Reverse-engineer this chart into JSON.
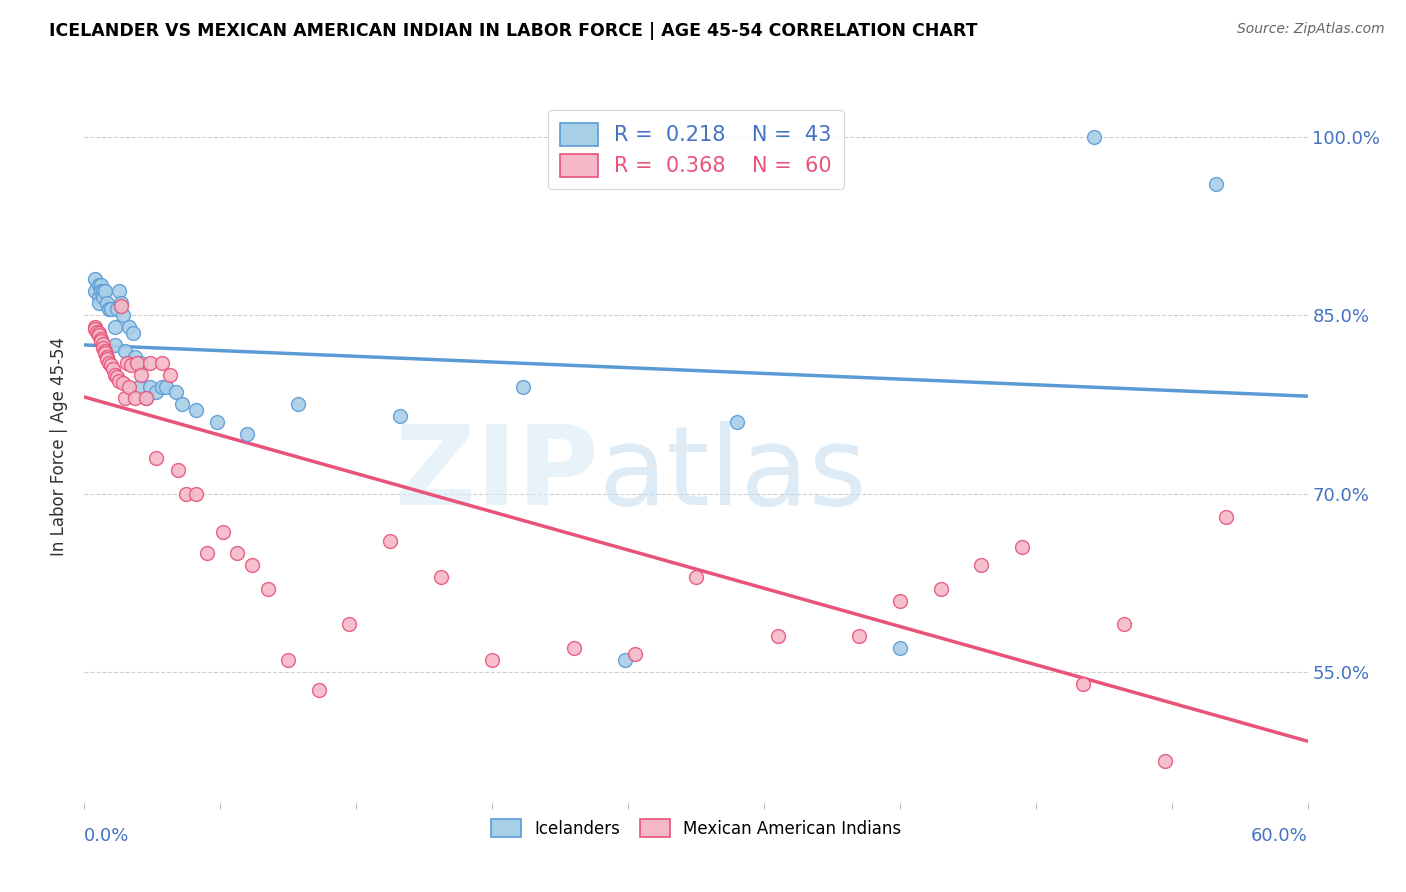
{
  "title": "ICELANDER VS MEXICAN AMERICAN INDIAN IN LABOR FORCE | AGE 45-54 CORRELATION CHART",
  "source": "Source: ZipAtlas.com",
  "ylabel": "In Labor Force | Age 45-54",
  "ylabel_right_ticks": [
    "55.0%",
    "70.0%",
    "85.0%",
    "100.0%"
  ],
  "ylabel_right_values": [
    0.55,
    0.7,
    0.85,
    1.0
  ],
  "xlim": [
    0.0,
    0.6
  ],
  "ylim": [
    0.44,
    1.04
  ],
  "color_blue": "#a8cfe8",
  "color_pink": "#f4b8c8",
  "color_blue_line": "#5b9bd5",
  "color_pink_line": "#e8537a",
  "icelanders_x": [
    0.005,
    0.005,
    0.007,
    0.007,
    0.007,
    0.008,
    0.008,
    0.009,
    0.009,
    0.01,
    0.011,
    0.012,
    0.013,
    0.015,
    0.015,
    0.016,
    0.017,
    0.018,
    0.019,
    0.02,
    0.022,
    0.024,
    0.025,
    0.027,
    0.028,
    0.03,
    0.032,
    0.035,
    0.038,
    0.04,
    0.045,
    0.048,
    0.055,
    0.065,
    0.08,
    0.105,
    0.155,
    0.215,
    0.265,
    0.32,
    0.4,
    0.495,
    0.555
  ],
  "icelanders_y": [
    0.87,
    0.88,
    0.875,
    0.865,
    0.86,
    0.875,
    0.87,
    0.87,
    0.865,
    0.87,
    0.86,
    0.855,
    0.855,
    0.84,
    0.825,
    0.855,
    0.87,
    0.86,
    0.85,
    0.82,
    0.84,
    0.835,
    0.815,
    0.79,
    0.81,
    0.78,
    0.79,
    0.785,
    0.79,
    0.79,
    0.785,
    0.775,
    0.77,
    0.76,
    0.75,
    0.775,
    0.765,
    0.79,
    0.56,
    0.76,
    0.57,
    1.0,
    0.96
  ],
  "mexican_x": [
    0.005,
    0.005,
    0.006,
    0.007,
    0.007,
    0.008,
    0.008,
    0.009,
    0.009,
    0.01,
    0.01,
    0.011,
    0.011,
    0.012,
    0.013,
    0.014,
    0.015,
    0.016,
    0.017,
    0.018,
    0.019,
    0.02,
    0.021,
    0.022,
    0.023,
    0.025,
    0.026,
    0.028,
    0.03,
    0.032,
    0.035,
    0.038,
    0.042,
    0.046,
    0.05,
    0.055,
    0.06,
    0.068,
    0.075,
    0.082,
    0.09,
    0.1,
    0.115,
    0.13,
    0.15,
    0.175,
    0.2,
    0.24,
    0.27,
    0.3,
    0.34,
    0.38,
    0.4,
    0.42,
    0.44,
    0.46,
    0.49,
    0.51,
    0.53,
    0.56
  ],
  "mexican_y": [
    0.84,
    0.838,
    0.836,
    0.835,
    0.833,
    0.83,
    0.828,
    0.826,
    0.822,
    0.82,
    0.818,
    0.815,
    0.813,
    0.81,
    0.808,
    0.805,
    0.8,
    0.798,
    0.795,
    0.858,
    0.793,
    0.78,
    0.81,
    0.79,
    0.808,
    0.78,
    0.81,
    0.8,
    0.78,
    0.81,
    0.73,
    0.81,
    0.8,
    0.72,
    0.7,
    0.7,
    0.65,
    0.668,
    0.65,
    0.64,
    0.62,
    0.56,
    0.535,
    0.59,
    0.66,
    0.63,
    0.56,
    0.57,
    0.565,
    0.63,
    0.58,
    0.58,
    0.61,
    0.62,
    0.64,
    0.655,
    0.54,
    0.59,
    0.475,
    0.68
  ]
}
